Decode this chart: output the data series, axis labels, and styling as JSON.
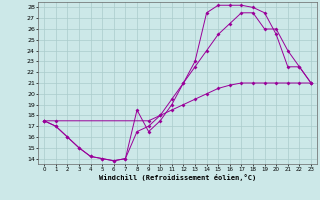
{
  "xlabel": "Windchill (Refroidissement éolien,°C)",
  "background_color": "#cce8e8",
  "grid_color": "#aacccc",
  "line_color": "#990099",
  "xlim": [
    -0.5,
    23.5
  ],
  "ylim": [
    13.5,
    28.5
  ],
  "xticks": [
    0,
    1,
    2,
    3,
    4,
    5,
    6,
    7,
    8,
    9,
    10,
    11,
    12,
    13,
    14,
    15,
    16,
    17,
    18,
    19,
    20,
    21,
    22,
    23
  ],
  "yticks": [
    14,
    15,
    16,
    17,
    18,
    19,
    20,
    21,
    22,
    23,
    24,
    25,
    26,
    27,
    28
  ],
  "line1_x": [
    0,
    1,
    2,
    3,
    4,
    5,
    6,
    7,
    8,
    9,
    10,
    11,
    12,
    13,
    14,
    15,
    16,
    17,
    18,
    19,
    20,
    21,
    22,
    23
  ],
  "line1_y": [
    17.5,
    17,
    16,
    15,
    14.2,
    14.0,
    13.8,
    14.0,
    18.5,
    16.5,
    17.5,
    19.0,
    21.0,
    23.0,
    27.5,
    28.2,
    28.2,
    28.2,
    28.0,
    27.5,
    25.5,
    22.5,
    22.5,
    21.0
  ],
  "line2_x": [
    0,
    1,
    2,
    3,
    4,
    5,
    6,
    7,
    8,
    9,
    10,
    11,
    12,
    13,
    14,
    15,
    16,
    17,
    18,
    19,
    20,
    21,
    22,
    23
  ],
  "line2_y": [
    17.5,
    17,
    16,
    15,
    14.2,
    14.0,
    13.8,
    14.0,
    16.5,
    17.0,
    18.0,
    19.5,
    21.0,
    22.5,
    24.0,
    25.5,
    26.5,
    27.5,
    27.5,
    26.0,
    26.0,
    24.0,
    22.5,
    21.0
  ],
  "line3_x": [
    0,
    1,
    9,
    10,
    11,
    12,
    13,
    14,
    15,
    16,
    17,
    18,
    19,
    20,
    21,
    22,
    23
  ],
  "line3_y": [
    17.5,
    17.5,
    17.5,
    18.0,
    18.5,
    19.0,
    19.5,
    20.0,
    20.5,
    20.8,
    21.0,
    21.0,
    21.0,
    21.0,
    21.0,
    21.0,
    21.0
  ]
}
